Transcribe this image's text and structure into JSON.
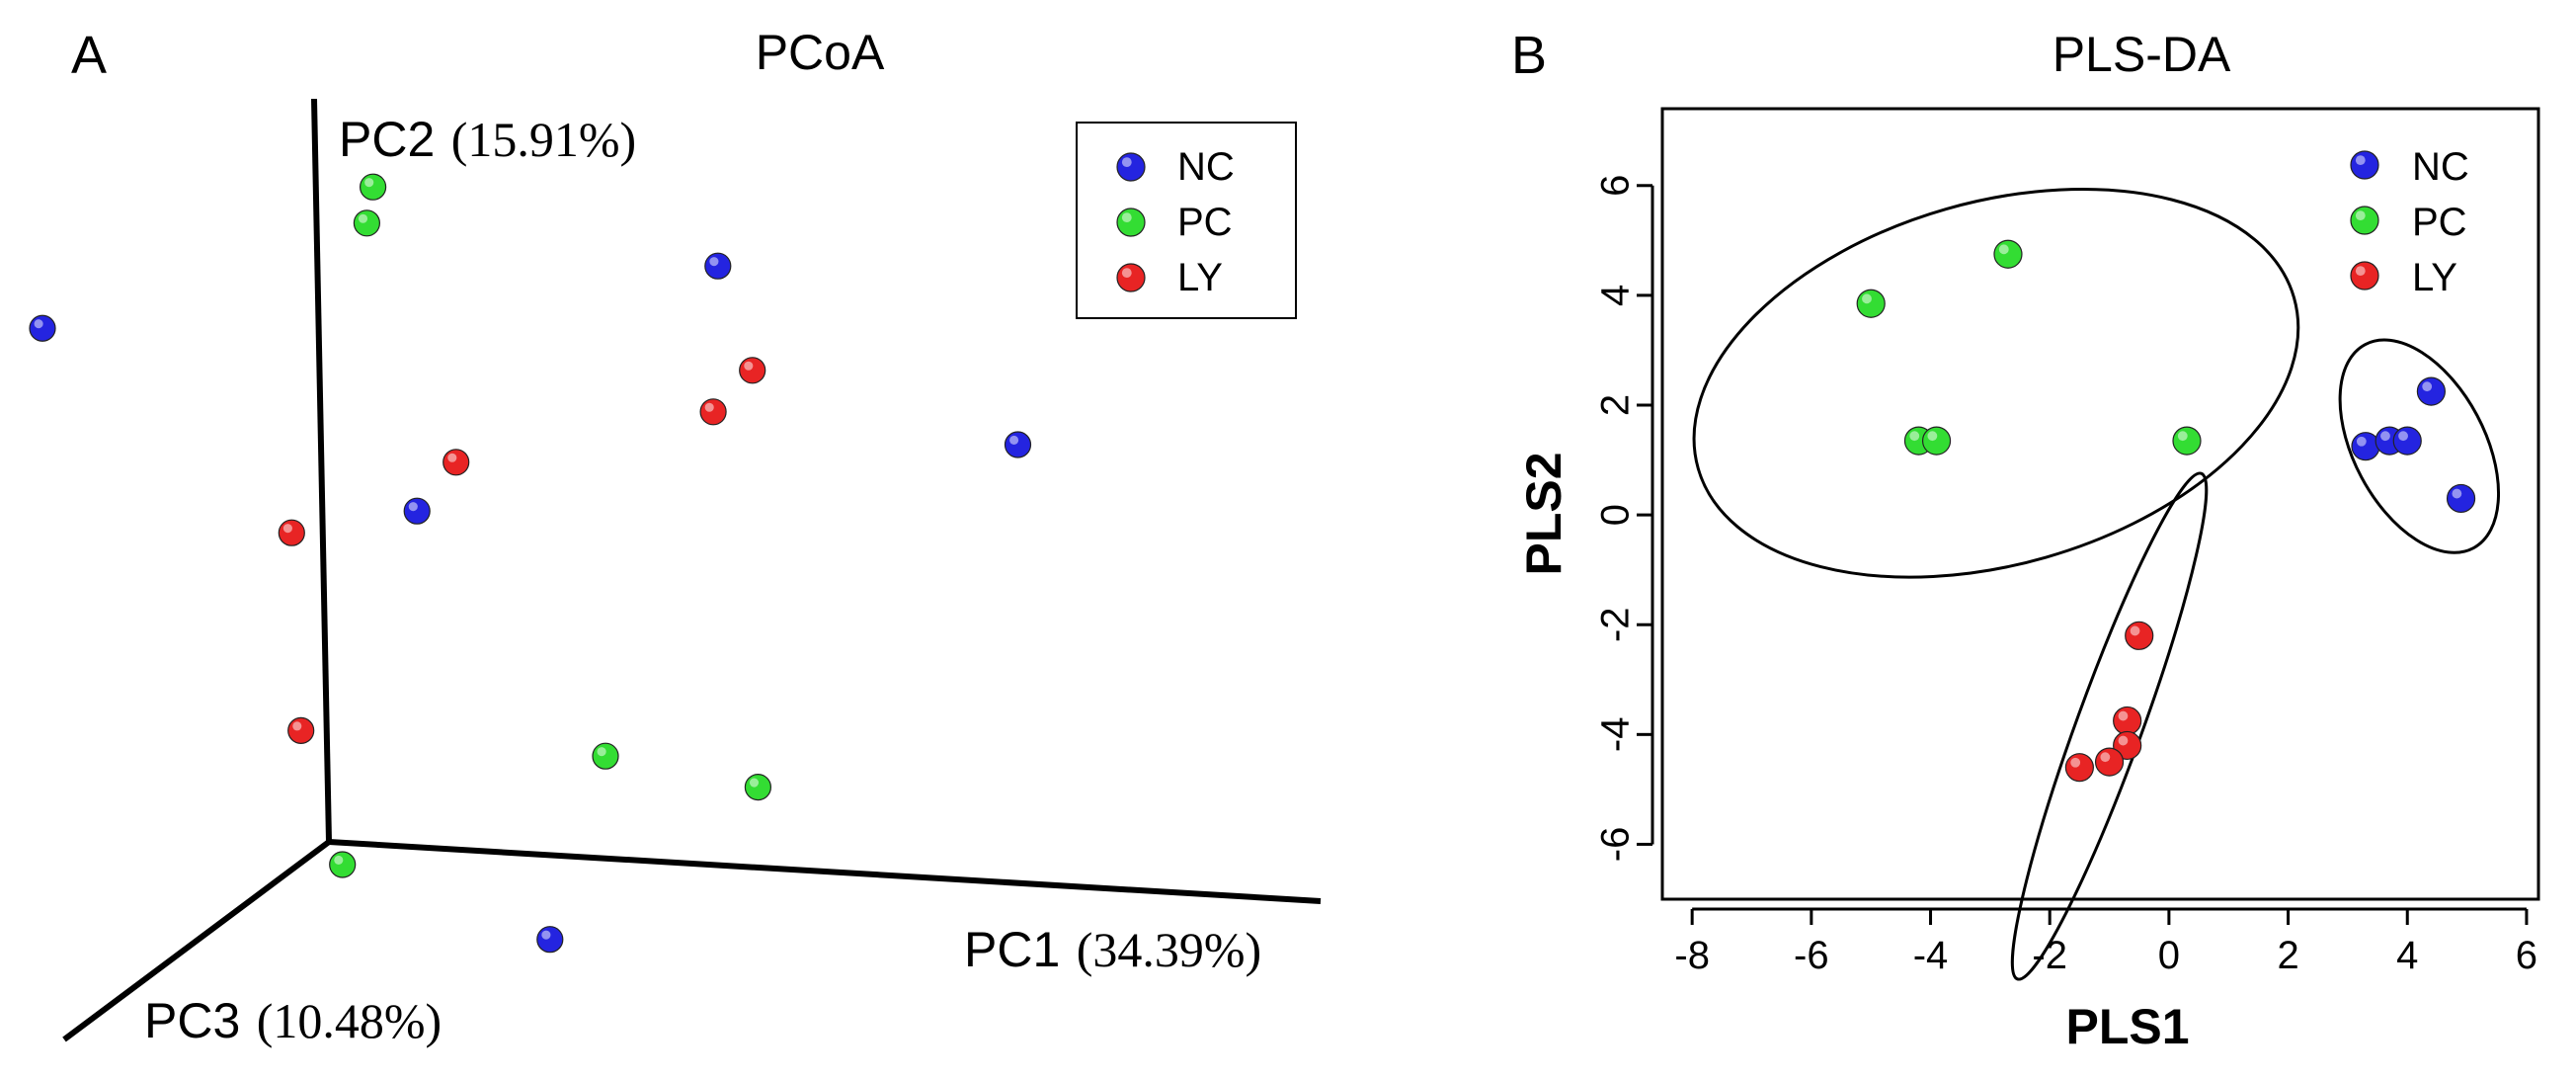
{
  "colors": {
    "NC": "#2424e0",
    "PC": "#33dd33",
    "LY": "#e82424",
    "axis": "#000000"
  },
  "chart_data": [
    {
      "panel": "A",
      "type": "scatter",
      "title": "PCoA",
      "projection": "3d",
      "axes": {
        "x": {
          "name": "PC1",
          "pct": "(34.39%)"
        },
        "y": {
          "name": "PC2",
          "pct": "(15.91%)"
        },
        "z": {
          "name": "PC3",
          "pct": "(10.48%)"
        }
      },
      "legend": {
        "placement": "top-right",
        "boxed": true,
        "entries": [
          "NC",
          "PC",
          "LY"
        ]
      },
      "series": [
        {
          "name": "NC",
          "points": [
            [
              -0.05,
              0.95,
              0.95
            ],
            [
              0.6,
              0.82,
              0.0
            ],
            [
              1.05,
              0.6,
              0.0
            ],
            [
              0.14,
              0.46,
              0.0
            ],
            [
              0.45,
              -0.03,
              0.3
            ]
          ]
        },
        {
          "name": "PC",
          "points": [
            [
              0.08,
              0.9,
              0.0
            ],
            [
              0.07,
              0.85,
              0.0
            ],
            [
              0.42,
              0.14,
              0.0
            ],
            [
              0.65,
              0.11,
              0.0
            ],
            [
              0.02,
              -0.03,
              0.0
            ]
          ]
        },
        {
          "name": "LY",
          "points": [
            [
              0.65,
              0.68,
              0.0
            ],
            [
              0.59,
              0.62,
              0.0
            ],
            [
              0.2,
              0.53,
              0.0
            ],
            [
              -0.05,
              0.42,
              0.0
            ],
            [
              -0.04,
              0.15,
              0.0
            ]
          ]
        }
      ]
    },
    {
      "panel": "B",
      "type": "scatter",
      "title": "PLS-DA",
      "xlabel": "PLS1",
      "ylabel": "PLS2",
      "xlim": [
        -8.5,
        6.2
      ],
      "ylim": [
        -7.0,
        7.4
      ],
      "xticks": [
        -8,
        -6,
        -4,
        -2,
        0,
        2,
        4,
        6
      ],
      "yticks": [
        -6,
        -4,
        -2,
        0,
        2,
        4,
        6
      ],
      "legend": {
        "placement": "top-right",
        "boxed": false,
        "entries": [
          "NC",
          "PC",
          "LY"
        ]
      },
      "series": [
        {
          "name": "NC",
          "points": [
            [
              3.3,
              1.25
            ],
            [
              3.7,
              1.35
            ],
            [
              4.0,
              1.35
            ],
            [
              4.4,
              2.25
            ],
            [
              4.9,
              0.3
            ]
          ]
        },
        {
          "name": "PC",
          "points": [
            [
              -5.0,
              3.85
            ],
            [
              -2.7,
              4.75
            ],
            [
              -4.2,
              1.35
            ],
            [
              -3.9,
              1.35
            ],
            [
              0.3,
              1.35
            ]
          ]
        },
        {
          "name": "LY",
          "points": [
            [
              -0.5,
              -2.2
            ],
            [
              -0.7,
              -3.75
            ],
            [
              -0.7,
              -4.2
            ],
            [
              -1.0,
              -4.5
            ],
            [
              -1.5,
              -4.6
            ]
          ]
        }
      ],
      "ellipses": [
        {
          "group": "PC",
          "cx": -2.9,
          "cy": 2.4,
          "rx": 5.2,
          "ry": 3.3,
          "angle": -16
        },
        {
          "group": "NC",
          "cx": 4.2,
          "cy": 1.25,
          "rx": 1.1,
          "ry": 2.1,
          "angle": -28
        },
        {
          "group": "LY",
          "cx": -1.0,
          "cy": -3.85,
          "rx": 0.55,
          "ry": 4.9,
          "angle": 20
        }
      ]
    }
  ]
}
